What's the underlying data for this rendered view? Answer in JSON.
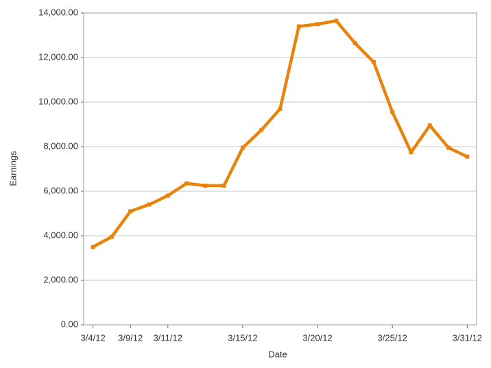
{
  "chart_data": {
    "type": "line",
    "x_label": "Date",
    "y_label": "Earnings",
    "categories": [
      "3/4/12",
      null,
      "3/9/12",
      null,
      "3/11/12",
      null,
      null,
      null,
      "3/15/12",
      null,
      null,
      null,
      "3/20/12",
      null,
      null,
      null,
      "3/25/12",
      null,
      null,
      null,
      "3/31/12"
    ],
    "series": [
      {
        "name": "Earnings",
        "color": "#e8830c",
        "values": [
          3500,
          3950,
          5100,
          5400,
          5800,
          6350,
          6250,
          6250,
          7950,
          8750,
          9700,
          13400,
          13500,
          13650,
          12650,
          11800,
          9550,
          7750,
          8950,
          7950,
          7550
        ]
      }
    ],
    "ylim": [
      0,
      14000
    ],
    "yticks": [
      {
        "value": 0,
        "label": "0.00"
      },
      {
        "value": 2000,
        "label": "2,000.00"
      },
      {
        "value": 4000,
        "label": "4,000.00"
      },
      {
        "value": 6000,
        "label": "6,000.00"
      },
      {
        "value": 8000,
        "label": "8,000.00"
      },
      {
        "value": 10000,
        "label": "10,000.00"
      },
      {
        "value": 12000,
        "label": "12,000.00"
      },
      {
        "value": 14000,
        "label": "14,000.00"
      }
    ],
    "grid": true
  }
}
